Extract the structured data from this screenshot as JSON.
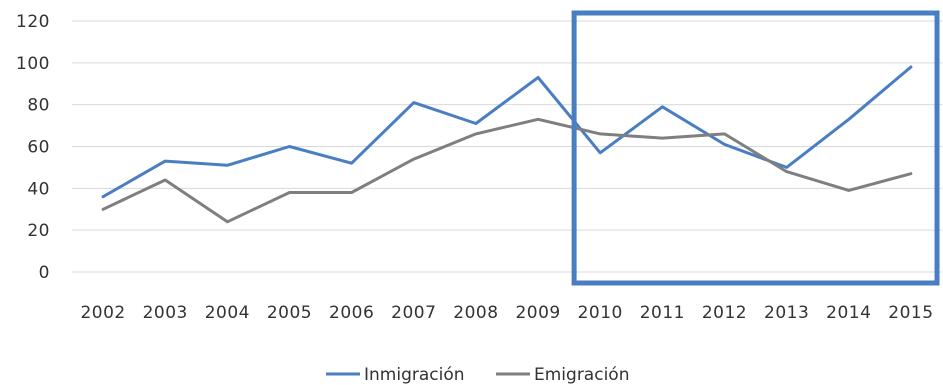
{
  "chart_data": {
    "type": "line",
    "categories": [
      "2002",
      "2003",
      "2004",
      "2005",
      "2006",
      "2007",
      "2008",
      "2009",
      "2010",
      "2011",
      "2012",
      "2013",
      "2014",
      "2015"
    ],
    "ylim": [
      0,
      120
    ],
    "yticks": [
      0,
      20,
      40,
      60,
      80,
      100,
      120
    ],
    "grid": true,
    "legend_position": "bottom",
    "series": [
      {
        "name": "Inmigración",
        "color": "#4a7ec2",
        "values": [
          36,
          53,
          51,
          60,
          52,
          81,
          71,
          93,
          57,
          79,
          61,
          50,
          73,
          98
        ]
      },
      {
        "name": "Emigración",
        "color": "#7f7f7f",
        "values": [
          30,
          44,
          24,
          38,
          38,
          54,
          66,
          73,
          66,
          64,
          66,
          48,
          39,
          47
        ]
      }
    ],
    "annotations": [
      {
        "type": "highlight-box",
        "from_category": "2010",
        "to_category": "2015",
        "color": "#4a7ec2"
      }
    ]
  }
}
